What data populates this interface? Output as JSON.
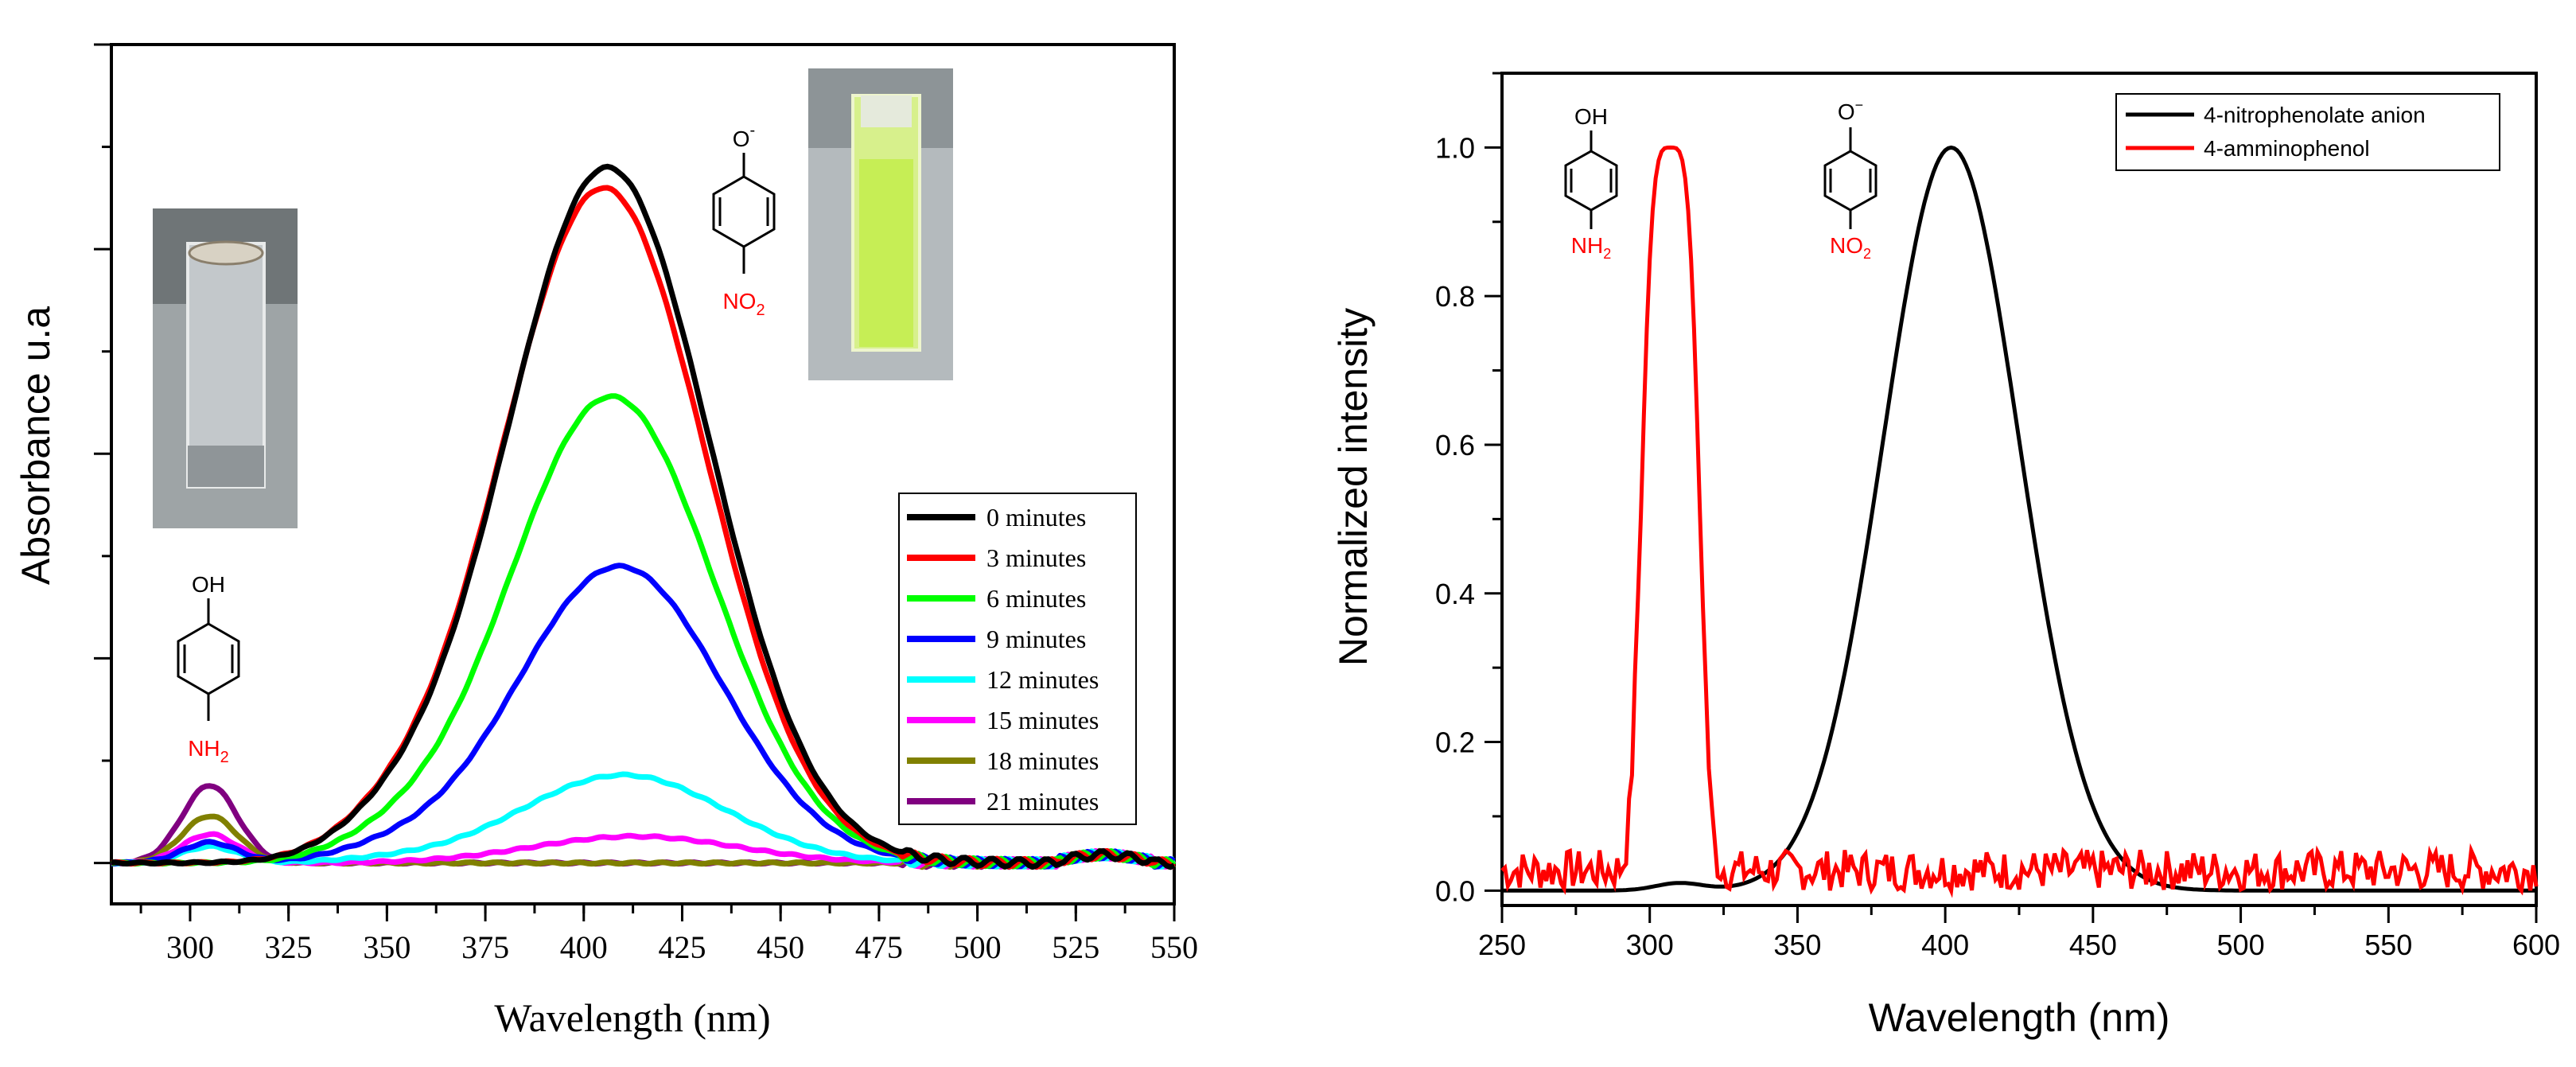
{
  "chart_data": [
    {
      "type": "line",
      "title": "",
      "xlabel": "Wavelength (nm)",
      "ylabel": "Absorbance u.a",
      "xlim": [
        280,
        550
      ],
      "ylim": [
        -0.2,
        4.0
      ],
      "xticks": [
        "300",
        "325",
        "350",
        "375",
        "400",
        "425",
        "450",
        "475",
        "500",
        "525",
        "550"
      ],
      "legend_position": "right",
      "series": [
        {
          "name": "0 minutes",
          "color": "#000000",
          "peak_wavelength": 406,
          "peak_absorbance": 3.4,
          "uv_peak_absorbance": 0.0
        },
        {
          "name": "3 minutes",
          "color": "#ff0000",
          "peak_wavelength": 405,
          "peak_absorbance": 3.3,
          "uv_peak_absorbance": 0.0
        },
        {
          "name": "6 minutes",
          "color": "#00ff00",
          "peak_wavelength": 407,
          "peak_absorbance": 2.28,
          "uv_peak_absorbance": 0.0
        },
        {
          "name": "9 minutes",
          "color": "#0000ff",
          "peak_wavelength": 409,
          "peak_absorbance": 1.45,
          "uv_peak_absorbance": 0.1
        },
        {
          "name": "12 minutes",
          "color": "#00ffff",
          "peak_wavelength": 410,
          "peak_absorbance": 0.43,
          "uv_peak_absorbance": 0.08
        },
        {
          "name": "15 minutes",
          "color": "#ff00ff",
          "peak_wavelength": 413,
          "peak_absorbance": 0.13,
          "uv_peak_absorbance": 0.14
        },
        {
          "name": "18 minutes",
          "color": "#808000",
          "peak_wavelength": 410,
          "peak_absorbance": 0.0,
          "uv_peak_absorbance": 0.23
        },
        {
          "name": "21 minutes",
          "color": "#800080",
          "peak_wavelength": 410,
          "peak_absorbance": 0.0,
          "uv_peak_absorbance": 0.38
        }
      ],
      "annotations": {
        "mol_top_group": "O",
        "mol_top_charge": "-",
        "mol_bottom_group": "NO",
        "mol_bottom_sub": "2",
        "mol2_top_group": "OH",
        "mol2_bottom_group": "NH",
        "mol2_bottom_sub": "2"
      }
    },
    {
      "type": "line",
      "title": "",
      "xlabel": "Wavelength (nm)",
      "ylabel": "Normalized intensity",
      "xlim": [
        250,
        600
      ],
      "ylim": [
        -0.02,
        1.1
      ],
      "xticks": [
        "250",
        "300",
        "350",
        "400",
        "450",
        "500",
        "550",
        "600"
      ],
      "yticks": [
        "0.0",
        "0.2",
        "0.4",
        "0.6",
        "0.8",
        "1.0"
      ],
      "legend_position": "top-right",
      "series": [
        {
          "name": "4-nitrophenolate anion",
          "color": "#000000",
          "peak_wavelength": 402,
          "peak_intensity": 1.0
        },
        {
          "name": "4-amminophenol",
          "color": "#ff0000",
          "peak_wavelength": 307,
          "peak_intensity": 1.0
        }
      ],
      "annotations": {
        "mol_top_group": "OH",
        "mol_bottom_group": "NH",
        "mol_bottom_sub": "2",
        "mol2_top_group": "O",
        "mol2_top_charge": "−",
        "mol2_bottom_group": "NO",
        "mol2_bottom_sub": "2"
      }
    }
  ]
}
